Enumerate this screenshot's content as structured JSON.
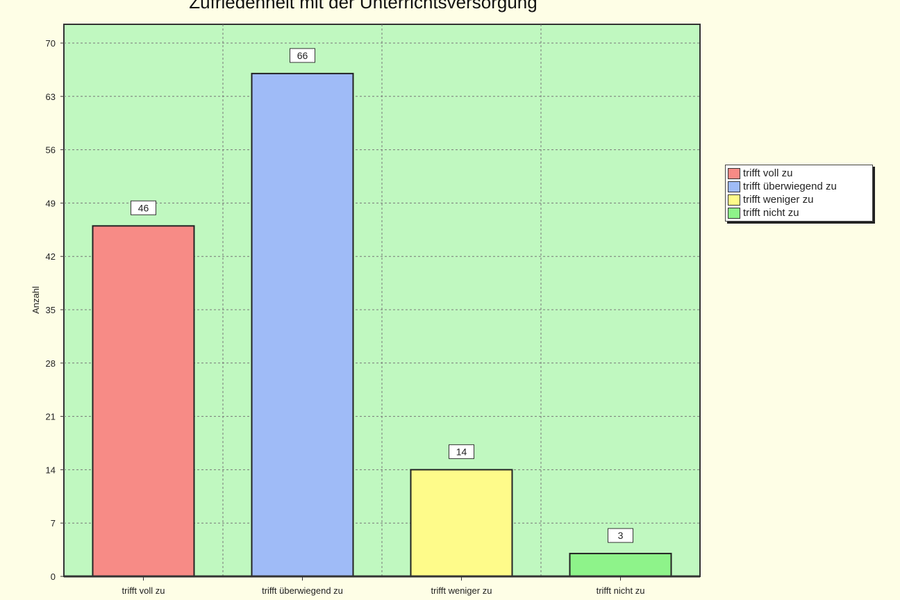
{
  "chart_data": {
    "type": "bar",
    "title": "Zufriedenheit mit der Unterrichtsversorgung",
    "ylabel": "Anzahl",
    "xlabel": "",
    "categories": [
      "trifft voll zu",
      "trifft überwiegend zu",
      "trifft weniger zu",
      "trifft nicht zu"
    ],
    "values": [
      46,
      66,
      14,
      3
    ],
    "colors": [
      "#f78b86",
      "#9fbbf7",
      "#fefb8a",
      "#8ef38a"
    ],
    "ylim": [
      0,
      73
    ],
    "yticks": [
      0,
      7,
      14,
      21,
      28,
      35,
      42,
      49,
      56,
      63,
      70
    ],
    "grid": true,
    "legend_position": "right",
    "background": "#c0f8c0"
  }
}
